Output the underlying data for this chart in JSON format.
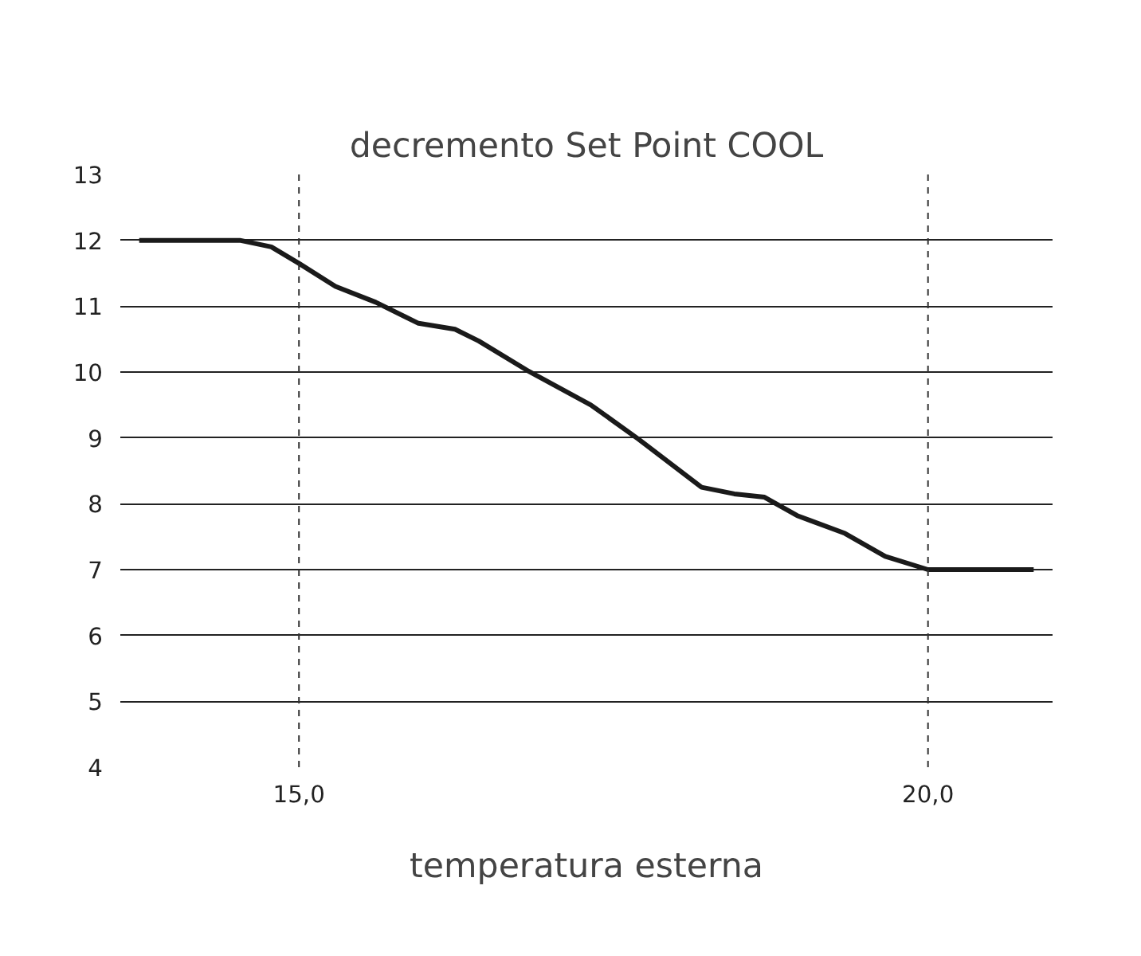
{
  "chart_data": {
    "type": "line",
    "title": "decremento Set Point COOL",
    "xlabel": "temperatura esterna",
    "x": [
      13.73,
      14.53,
      14.78,
      15.0,
      15.29,
      15.61,
      15.95,
      16.24,
      16.43,
      16.81,
      17.32,
      17.7,
      18.2,
      18.46,
      18.7,
      18.96,
      19.34,
      19.66,
      20.0,
      20.84
    ],
    "series": [
      {
        "color": "#1a1a1a",
        "values": [
          12,
          12,
          11.9,
          11.65,
          11.3,
          11.06,
          10.74,
          10.65,
          10.47,
          10.03,
          9.5,
          8.98,
          8.25,
          8.15,
          8.1,
          7.82,
          7.55,
          7.2,
          7,
          7
        ]
      }
    ],
    "xlim": [
      13.58,
      20.99
    ],
    "xticks": [
      {
        "value": 15,
        "label": "15,0"
      },
      {
        "value": 20,
        "label": "20,0"
      }
    ],
    "ylim": [
      4,
      13
    ],
    "yticks": [
      4,
      5,
      6,
      7,
      8,
      9,
      10,
      11,
      12,
      13
    ],
    "ref_lines": [
      {
        "axis": "x",
        "value": 15,
        "label": null,
        "color": "#333333",
        "line_style": "dashed"
      },
      {
        "axis": "x",
        "value": 20,
        "label": null,
        "color": "#333333",
        "line_style": "dashed"
      }
    ],
    "grid": "y",
    "marker": "none",
    "line_style": "solid"
  }
}
